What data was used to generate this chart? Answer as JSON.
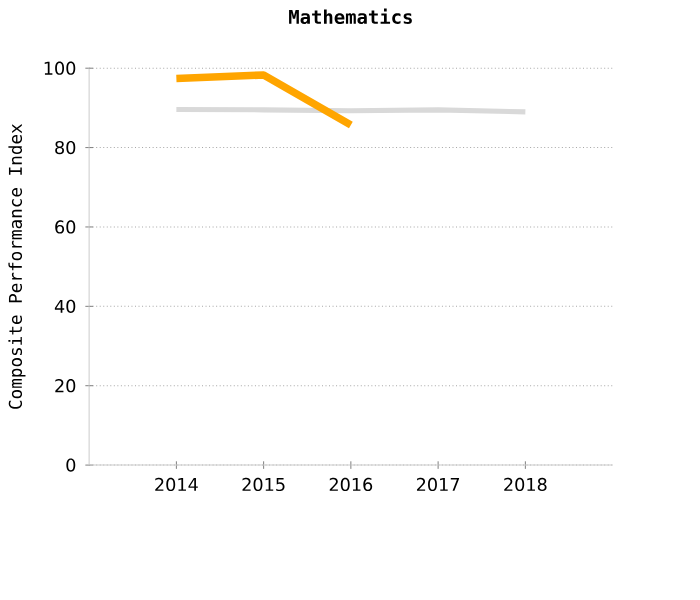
{
  "chart_data": {
    "type": "line",
    "title": "Mathematics",
    "ylabel": "Composite Performance Index",
    "categories": [
      "2014",
      "2015",
      "2016",
      "2017",
      "2018"
    ],
    "series": [
      {
        "color": "#d9d9d9",
        "values": [
          89.6,
          89.5,
          89.3,
          89.5,
          89.0
        ]
      },
      {
        "color": "#ffa500",
        "values": [
          97.4,
          98.3,
          85.7,
          null,
          null
        ]
      }
    ],
    "ylim": [
      0,
      100
    ],
    "yticks": [
      0,
      20,
      40,
      60,
      80,
      100
    ],
    "grid": "y"
  }
}
